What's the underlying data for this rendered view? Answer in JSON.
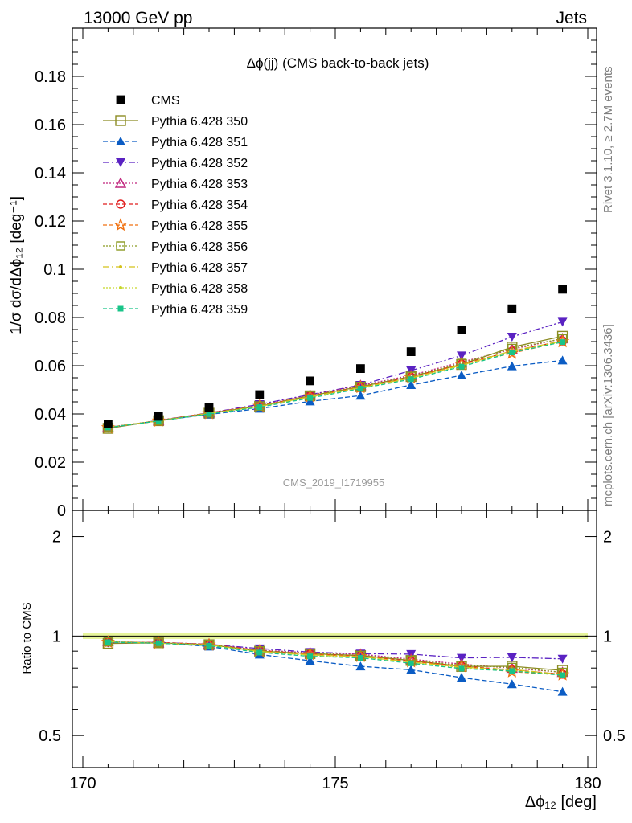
{
  "header": {
    "left": "13000 GeV pp",
    "right": "Jets"
  },
  "side_text": {
    "rivet": "Rivet 3.1.10, ≥ 2.7M events",
    "site": "mcplots.cern.ch [arXiv:1306.3436]"
  },
  "chart_data": {
    "type": "scatter",
    "title": "Δϕ(jj) (CMS back-to-back jets)",
    "analysis_label": "CMS_2019_I1719955",
    "xlabel": "Δϕ₁₂ [deg]",
    "ylabel": "1/σ dσ/dΔϕ₁₂ [deg⁻¹]",
    "ratio_ylabel": "Ratio to CMS",
    "xlim": [
      170,
      180
    ],
    "ylim": [
      0,
      0.2
    ],
    "ratio_ylim": [
      0.4,
      2.4
    ],
    "ratio_scale": "log",
    "x_ticks": [
      "170",
      "175",
      "180"
    ],
    "y_ticks": [
      "0",
      "0.02",
      "0.04",
      "0.06",
      "0.08",
      "0.1",
      "0.12",
      "0.14",
      "0.16",
      "0.18"
    ],
    "ratio_ticks": [
      "0.5",
      "1",
      "2"
    ],
    "legend_position": "top-left",
    "x": [
      170.5,
      171.5,
      172.5,
      173.5,
      174.5,
      175.5,
      176.5,
      177.5,
      178.5,
      179.5
    ],
    "data": {
      "name": "CMS",
      "values": [
        0.0358,
        0.039,
        0.0428,
        0.048,
        0.0537,
        0.0588,
        0.0658,
        0.0748,
        0.0836,
        0.0917
      ]
    },
    "series": [
      {
        "name": "Pythia 6.428 350",
        "color": "#8b8b22",
        "marker": "square-open",
        "dash": "",
        "values": [
          0.034,
          0.0372,
          0.0403,
          0.0432,
          0.0475,
          0.0513,
          0.0555,
          0.0605,
          0.0677,
          0.0722
        ]
      },
      {
        "name": "Pythia 6.428 351",
        "color": "#0b5cc4",
        "marker": "triangle-up",
        "dash": "6,3",
        "values": [
          0.0344,
          0.0372,
          0.0398,
          0.0422,
          0.0452,
          0.0476,
          0.052,
          0.056,
          0.0598,
          0.0622
        ]
      },
      {
        "name": "Pythia 6.428 352",
        "color": "#5a22c2",
        "marker": "triangle-down",
        "dash": "8,3,2,3",
        "values": [
          0.0342,
          0.0373,
          0.0404,
          0.044,
          0.048,
          0.052,
          0.058,
          0.0642,
          0.072,
          0.0782
        ]
      },
      {
        "name": "Pythia 6.428 353",
        "color": "#c0267e",
        "marker": "triangle-open",
        "dash": "2,2",
        "values": [
          0.0345,
          0.0372,
          0.0405,
          0.0435,
          0.0478,
          0.0518,
          0.056,
          0.0615,
          0.0668,
          0.0712
        ]
      },
      {
        "name": "Pythia 6.428 354",
        "color": "#e01c1c",
        "marker": "circle-open",
        "dash": "5,3",
        "values": [
          0.0343,
          0.0373,
          0.0404,
          0.0434,
          0.0474,
          0.0512,
          0.0553,
          0.0607,
          0.066,
          0.0703
        ]
      },
      {
        "name": "Pythia 6.428 355",
        "color": "#f07010",
        "marker": "star-open",
        "dash": "5,3",
        "values": [
          0.0343,
          0.0371,
          0.0402,
          0.0432,
          0.0472,
          0.051,
          0.055,
          0.0605,
          0.0652,
          0.07
        ]
      },
      {
        "name": "Pythia 6.428 356",
        "color": "#8b9a22",
        "marker": "square-open-small",
        "dash": "2,2",
        "values": [
          0.0344,
          0.0372,
          0.0404,
          0.0433,
          0.0476,
          0.0514,
          0.0556,
          0.061,
          0.0672,
          0.0712
        ]
      },
      {
        "name": "Pythia 6.428 357",
        "color": "#d4c21a",
        "marker": "dot",
        "dash": "8,3,2,3",
        "values": [
          0.0344,
          0.0371,
          0.0402,
          0.0431,
          0.0471,
          0.0509,
          0.0549,
          0.0602,
          0.0662,
          0.0702
        ]
      },
      {
        "name": "Pythia 6.428 358",
        "color": "#c6d62a",
        "marker": "dot",
        "dash": "2,2",
        "values": [
          0.0344,
          0.0372,
          0.0402,
          0.043,
          0.0469,
          0.0508,
          0.0548,
          0.06,
          0.0658,
          0.07
        ]
      },
      {
        "name": "Pythia 6.428 359",
        "color": "#18c488",
        "marker": "square-small",
        "dash": "5,3",
        "values": [
          0.0343,
          0.0371,
          0.04,
          0.0428,
          0.0466,
          0.0505,
          0.0544,
          0.0596,
          0.0655,
          0.0698
        ]
      }
    ]
  }
}
